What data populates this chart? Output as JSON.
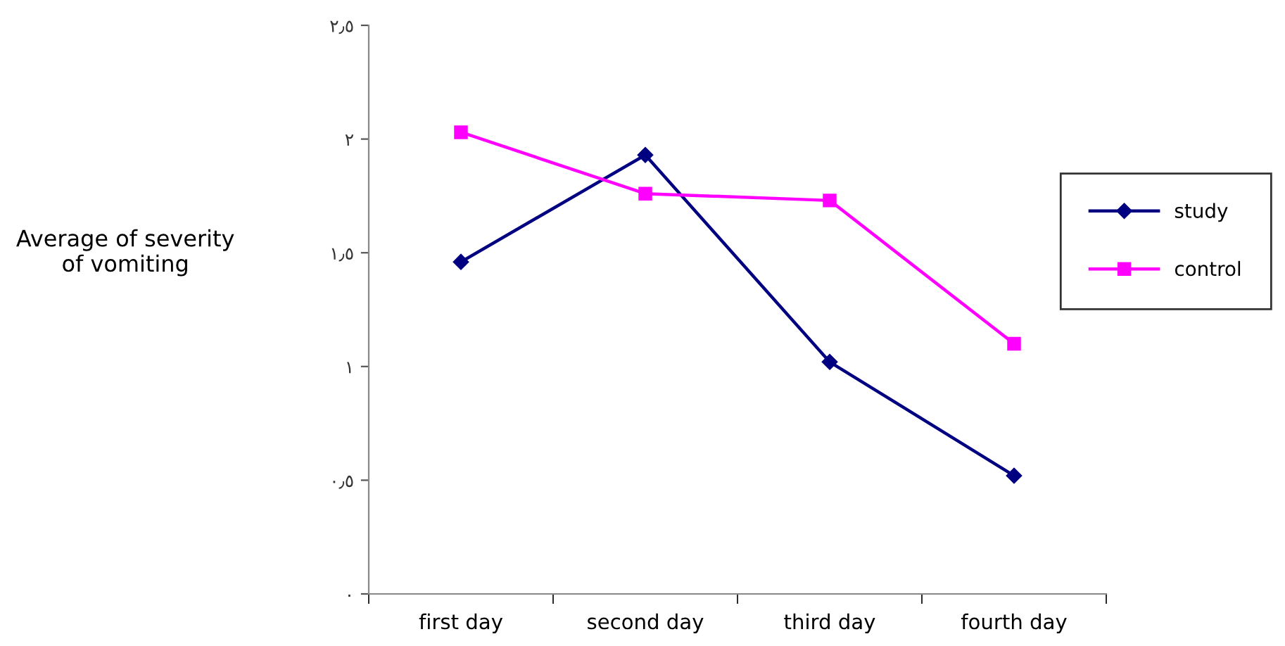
{
  "chart_data": {
    "type": "line",
    "ylabel": "Average of severity\nof vomiting",
    "categories": [
      "first day",
      "second day",
      "third day",
      "fourth day"
    ],
    "series": [
      {
        "name": "study",
        "color": "#000080",
        "marker": "diamond",
        "values": [
          1.46,
          1.93,
          1.02,
          0.52
        ]
      },
      {
        "name": "control",
        "color": "#ff00ff",
        "marker": "square",
        "values": [
          2.03,
          1.76,
          1.73,
          1.1
        ]
      }
    ],
    "ylim": [
      0,
      2.5
    ],
    "yticks": [
      {
        "value": 0,
        "label": "٠"
      },
      {
        "value": 0.5,
        "label": "٠٫٥"
      },
      {
        "value": 1,
        "label": "١"
      },
      {
        "value": 1.5,
        "label": "١٫٥"
      },
      {
        "value": 2,
        "label": "٢"
      },
      {
        "value": 2.5,
        "label": "٢٫٥"
      }
    ],
    "grid": false,
    "legend": "right",
    "line_style": "solid"
  }
}
